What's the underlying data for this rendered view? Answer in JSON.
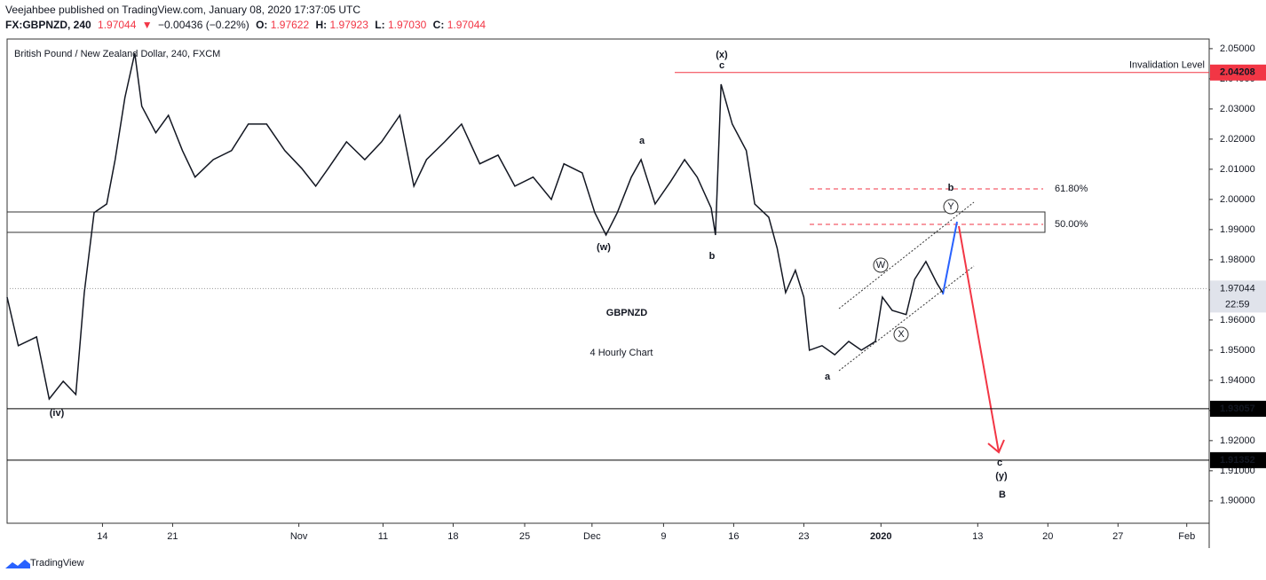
{
  "header": {
    "publisher": "Veejahbee published on TradingView.com, January 08, 2020 17:37:05 UTC",
    "symbol": "FX:GBPNZD, 240",
    "price": "1.97044",
    "arrow": "▼",
    "change": "−0.00436 (−0.22%)",
    "o_label": "O:",
    "open": "1.97622",
    "h_label": "H:",
    "high": "1.97923",
    "l_label": "L:",
    "low": "1.97030",
    "c_label": "C:",
    "close": "1.97044"
  },
  "chart_data": {
    "type": "line",
    "subtitle": "British Pound / New Zealand Dollar, 240, FXCM",
    "title": "GBPNZD",
    "annotation": "4 Hourly Chart",
    "x": [
      -6.8,
      -6.0,
      -4.7,
      -3.8,
      -2.8,
      -1.9,
      -1.3,
      -0.6,
      0.3,
      0.9,
      1.6,
      2.3,
      2.8,
      3.8,
      4.7,
      5.7,
      6.6,
      7.9,
      9.2,
      10.4,
      11.7,
      13.0,
      14.2,
      15.2,
      16.1,
      17.4,
      18.7,
      19.9,
      21.2,
      22.2,
      23.1,
      24.4,
      25.6,
      26.9,
      28.2,
      29.4,
      30.7,
      32.0,
      32.9,
      34.2,
      35.1,
      35.9,
      36.7,
      37.7,
      38.4,
      39.4,
      40.5,
      41.5,
      42.4,
      43.4,
      43.7,
      44.1,
      44.9,
      45.9,
      46.5,
      47.5,
      48.1,
      48.7,
      49.4,
      50.0,
      50.4,
      51.3,
      52.2,
      53.2,
      54.1,
      55.1,
      55.6,
      56.3,
      57.3,
      57.9,
      58.7,
      59.5,
      59.9
    ],
    "series": [
      {
        "color": "#131722",
        "values": [
          1.9676,
          1.9515,
          1.9544,
          1.9338,
          1.9397,
          1.9353,
          1.969,
          1.9956,
          1.9985,
          2.0132,
          2.0338,
          2.0485,
          2.0309,
          2.0221,
          2.0279,
          2.0162,
          2.0074,
          2.0132,
          2.0162,
          2.025,
          2.025,
          2.0162,
          2.0103,
          2.0044,
          2.0103,
          2.0191,
          2.0132,
          2.0191,
          2.0279,
          2.0044,
          2.0132,
          2.0191,
          2.025,
          2.0118,
          2.0147,
          2.0044,
          2.0074,
          2.0,
          2.0118,
          2.0088,
          1.9956,
          1.9882,
          1.9956,
          2.0074,
          2.0132,
          1.9985,
          2.0059,
          2.0132,
          2.0074,
          1.9971,
          1.9882,
          2.0382,
          2.025,
          2.0162,
          1.9985,
          1.9941,
          1.9838,
          1.9691,
          1.9765,
          1.9676,
          1.95,
          1.9515,
          1.9485,
          1.9529,
          1.95,
          1.9529,
          1.9676,
          1.9632,
          1.9618,
          1.9735,
          1.9794,
          1.9721,
          1.9691
        ]
      }
    ],
    "xlim": [
      -6.8,
      78.9
    ],
    "xticks": [
      {
        "value": 0,
        "label": "14"
      },
      {
        "value": 5,
        "label": "21"
      },
      {
        "value": 14,
        "label": "Nov"
      },
      {
        "value": 20,
        "label": "11"
      },
      {
        "value": 25,
        "label": "18"
      },
      {
        "value": 30.1,
        "label": "25"
      },
      {
        "value": 34.9,
        "label": "Dec"
      },
      {
        "value": 40,
        "label": "9"
      },
      {
        "value": 45,
        "label": "16"
      },
      {
        "value": 50,
        "label": "23"
      },
      {
        "value": 55.5,
        "label": "2020"
      },
      {
        "value": 62.4,
        "label": "13"
      },
      {
        "value": 67.4,
        "label": "20"
      },
      {
        "value": 72.4,
        "label": "27"
      },
      {
        "value": 77.3,
        "label": "Feb"
      }
    ],
    "ylim": [
      1.8926,
      2.0532
    ],
    "yticks": [
      {
        "value": 1.9,
        "label": "1.90000"
      },
      {
        "value": 1.91,
        "label": "1.91000"
      },
      {
        "value": 1.92,
        "label": "1.92000"
      },
      {
        "value": 1.93,
        "label": "1.93000"
      },
      {
        "value": 1.94,
        "label": "1.94000"
      },
      {
        "value": 1.95,
        "label": "1.95000"
      },
      {
        "value": 1.96,
        "label": "1.96000"
      },
      {
        "value": 1.97,
        "label": "1.97000"
      },
      {
        "value": 1.98,
        "label": "1.98000"
      },
      {
        "value": 1.99,
        "label": "1.99000"
      },
      {
        "value": 2.0,
        "label": "2.00000"
      },
      {
        "value": 2.01,
        "label": "2.01000"
      },
      {
        "value": 2.02,
        "label": "2.02000"
      },
      {
        "value": 2.03,
        "label": "2.03000"
      },
      {
        "value": 2.04,
        "label": "2.04000"
      },
      {
        "value": 2.05,
        "label": "2.05000"
      }
    ],
    "invalidation": {
      "value": 2.04208,
      "name": "Invalidation Level",
      "color": "#f23645"
    },
    "supports": [
      1.93057,
      1.91352
    ],
    "last_price": 1.97044,
    "countdown": "22:59",
    "fib_labels": [
      "61.80%",
      "50.00%"
    ],
    "wave_labels": [
      {
        "text": "(iv)",
        "color": "#1a237e"
      },
      {
        "text": "(w)",
        "color": "#d32f2f"
      },
      {
        "text": "a",
        "color": "#1a237e"
      },
      {
        "text": "b",
        "color": "#1a237e"
      },
      {
        "text": "(x)",
        "color": "#d32f2f"
      },
      {
        "text": "c",
        "color": "#1a237e"
      },
      {
        "text": "a",
        "color": "#1a237e"
      },
      {
        "text": "W",
        "color": "#333333"
      },
      {
        "text": "X",
        "color": "#333333"
      },
      {
        "text": "Y",
        "color": "#333333"
      },
      {
        "text": "b",
        "color": "#1a237e"
      },
      {
        "text": "c",
        "color": "#1a237e"
      },
      {
        "text": "(y)",
        "color": "#d32f2f"
      },
      {
        "text": "B",
        "color": "#000000"
      }
    ]
  },
  "footer": {
    "brand": "TradingView"
  }
}
